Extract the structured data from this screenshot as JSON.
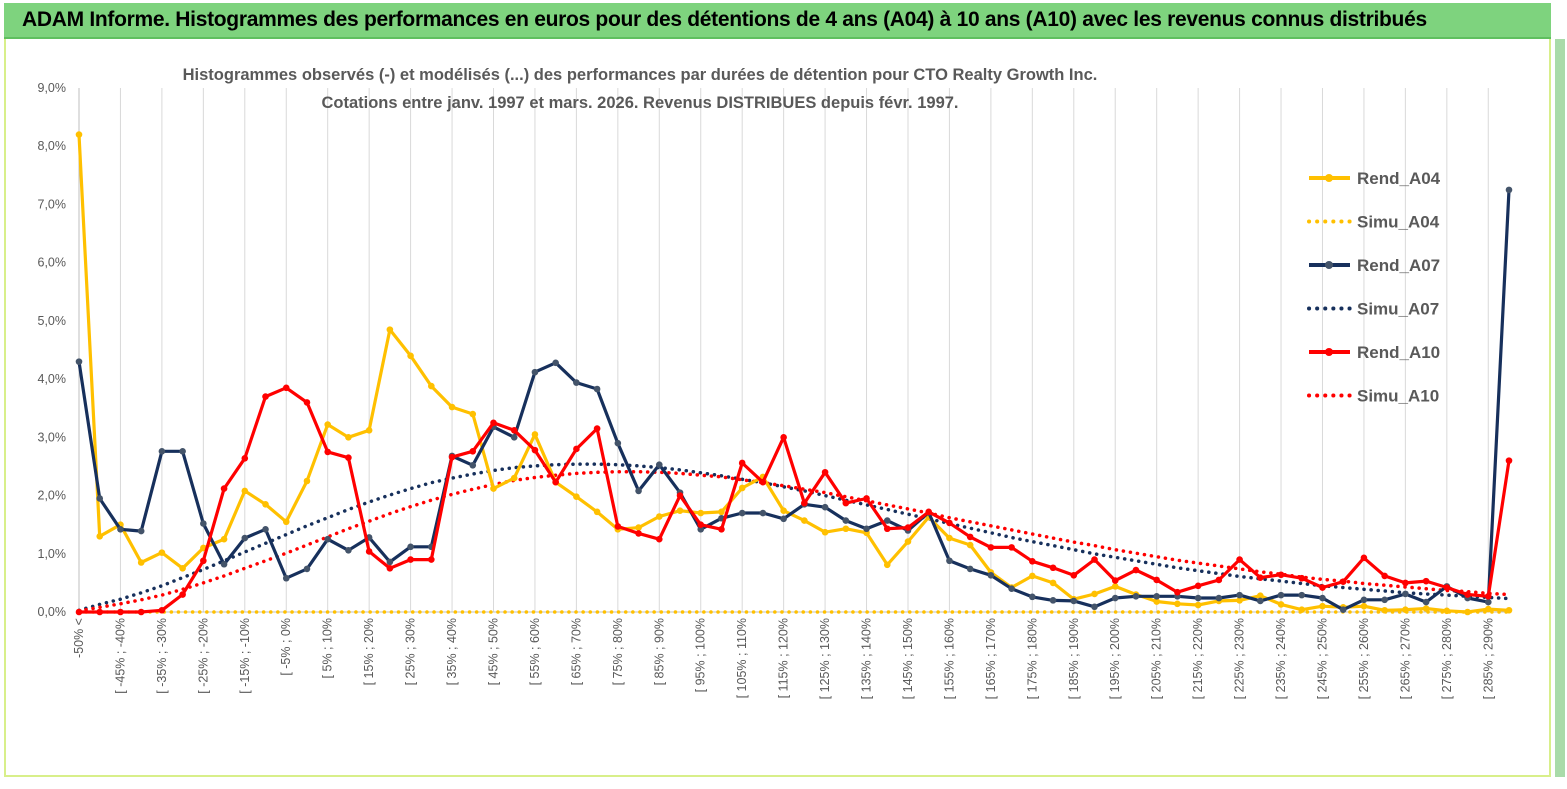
{
  "header": {
    "title": "ADAM Informe. Histogrammes des performances en euros pour des détentions de 4 ans (A04) à 10 ans (A10) avec les revenus connus distribués"
  },
  "chart_data": {
    "type": "line",
    "title_line1": "Histogrammes observés (-)  et modélisés (...) des performances par durées de détention pour CTO Realty Growth Inc.",
    "title_line2": "Cotations entre janv. 1997 et mars. 2026. Revenus DISTRIBUES depuis févr. 1997.",
    "ylim": [
      0,
      9
    ],
    "yticks": [
      "0,0%",
      "1,0%",
      "2,0%",
      "3,0%",
      "4,0%",
      "5,0%",
      "6,0%",
      "7,0%",
      "8,0%",
      "9,0%"
    ],
    "xticks": [
      "-50% <",
      "[ -45% ; -40%",
      "[ -35% ; -30%",
      "[ -25% ; -20%",
      "[ -15% ; -10%",
      "[ -5% ; 0%",
      "[ 5% ; 10%",
      "[ 15% ; 20%",
      "[ 25% ; 30%",
      "[ 35% ; 40%",
      "[ 45% ; 50%",
      "[ 55% ; 60%",
      "[ 65% ; 70%",
      "[ 75% ; 80%",
      "[ 85% ; 90%",
      "[ 95% ; 100%",
      "[ 105% ; 110%",
      "[ 115% ; 120%",
      "[ 125% ; 130%",
      "[ 135% ; 140%",
      "[ 145% ; 150%",
      "[ 155% ; 160%",
      "[ 165% ; 170%",
      "[ 175% ; 180%",
      "[ 185% ; 190%",
      "[ 195% ; 200%",
      "[ 205% ; 210%",
      "[ 215% ; 220%",
      "[ 225% ; 230%",
      "[ 235% ; 240%",
      "[ 245% ; 250%",
      "[ 255% ; 260%",
      "[ 265% ; 270%",
      "[ 275% ; 280%",
      "[ 285% ; 290%"
    ],
    "series": [
      {
        "name": "Rend_A04",
        "style": "solid",
        "color": "#ffc000",
        "values": [
          8.2,
          1.3,
          1.5,
          0.85,
          1.02,
          0.75,
          1.1,
          1.25,
          2.08,
          1.85,
          1.55,
          2.25,
          3.22,
          3.0,
          3.12,
          4.85,
          4.4,
          3.88,
          3.52,
          3.4,
          2.12,
          2.3,
          3.05,
          2.23,
          1.98,
          1.72,
          1.42,
          1.45,
          1.64,
          1.74,
          1.7,
          1.72,
          2.13,
          2.32,
          1.74,
          1.57,
          1.37,
          1.43,
          1.36,
          0.81,
          1.21,
          1.63,
          1.27,
          1.15,
          0.68,
          0.42,
          0.62,
          0.5,
          0.22,
          0.31,
          0.44,
          0.3,
          0.18,
          0.14,
          0.12,
          0.19,
          0.2,
          0.28,
          0.13,
          0.04,
          0.1,
          0.08,
          0.1,
          0.03,
          0.04,
          0.06,
          0.02,
          0.0,
          0.05,
          0.03
        ]
      },
      {
        "name": "Simu_A04",
        "style": "dotted",
        "color": "#ffc000",
        "values": [
          0,
          0,
          0,
          0,
          0,
          0,
          0,
          0,
          0,
          0,
          0,
          0,
          0,
          0,
          0,
          0,
          0,
          0,
          0,
          0,
          0,
          0,
          0,
          0,
          0,
          0,
          0,
          0,
          0,
          0,
          0,
          0,
          0,
          0,
          0,
          0,
          0,
          0,
          0,
          0,
          0,
          0,
          0,
          0,
          0,
          0,
          0,
          0,
          0,
          0,
          0,
          0,
          0,
          0,
          0,
          0,
          0,
          0,
          0,
          0,
          0,
          0,
          0,
          0,
          0,
          0,
          0,
          0,
          0,
          0
        ]
      },
      {
        "name": "Rend_A07",
        "style": "solid",
        "color": "#17305c",
        "values": [
          4.3,
          1.95,
          1.42,
          1.39,
          2.76,
          2.76,
          1.52,
          0.82,
          1.27,
          1.42,
          0.58,
          0.74,
          1.25,
          1.06,
          1.28,
          0.86,
          1.12,
          1.12,
          2.68,
          2.52,
          3.18,
          3.0,
          4.12,
          4.28,
          3.94,
          3.83,
          2.9,
          2.08,
          2.53,
          2.05,
          1.42,
          1.61,
          1.7,
          1.7,
          1.6,
          1.85,
          1.8,
          1.57,
          1.43,
          1.57,
          1.4,
          1.71,
          0.88,
          0.74,
          0.63,
          0.4,
          0.26,
          0.2,
          0.19,
          0.09,
          0.24,
          0.27,
          0.27,
          0.27,
          0.24,
          0.24,
          0.29,
          0.19,
          0.29,
          0.29,
          0.24,
          0.04,
          0.21,
          0.21,
          0.31,
          0.17,
          0.44,
          0.24,
          0.17,
          7.25
        ]
      },
      {
        "name": "Simu_A07",
        "style": "dotted",
        "color": "#17305c",
        "values": [
          0.03,
          0.13,
          0.22,
          0.33,
          0.45,
          0.59,
          0.73,
          0.88,
          1.03,
          1.18,
          1.33,
          1.48,
          1.62,
          1.76,
          1.89,
          2.01,
          2.12,
          2.22,
          2.3,
          2.37,
          2.43,
          2.48,
          2.51,
          2.53,
          2.54,
          2.54,
          2.53,
          2.51,
          2.48,
          2.44,
          2.39,
          2.34,
          2.28,
          2.22,
          2.15,
          2.08,
          2.0,
          1.92,
          1.84,
          1.76,
          1.68,
          1.6,
          1.52,
          1.44,
          1.36,
          1.28,
          1.21,
          1.14,
          1.07,
          1.0,
          0.94,
          0.88,
          0.82,
          0.76,
          0.71,
          0.66,
          0.61,
          0.57,
          0.53,
          0.49,
          0.45,
          0.42,
          0.39,
          0.36,
          0.33,
          0.31,
          0.29,
          0.27,
          0.25,
          0.23
        ]
      },
      {
        "name": "Rend_A10",
        "style": "solid",
        "color": "#ff0000",
        "values": [
          0.0,
          0.0,
          0.0,
          0.0,
          0.03,
          0.3,
          0.88,
          2.12,
          2.64,
          3.7,
          3.85,
          3.6,
          2.75,
          2.65,
          1.04,
          0.75,
          0.9,
          0.9,
          2.66,
          2.76,
          3.25,
          3.12,
          2.78,
          2.23,
          2.8,
          3.15,
          1.47,
          1.35,
          1.25,
          2.0,
          1.5,
          1.42,
          2.56,
          2.23,
          3.0,
          1.87,
          2.4,
          1.87,
          1.95,
          1.43,
          1.45,
          1.72,
          1.53,
          1.29,
          1.11,
          1.11,
          0.87,
          0.76,
          0.63,
          0.9,
          0.54,
          0.72,
          0.55,
          0.34,
          0.45,
          0.55,
          0.9,
          0.59,
          0.64,
          0.58,
          0.42,
          0.52,
          0.93,
          0.62,
          0.5,
          0.53,
          0.42,
          0.3,
          0.27,
          2.6
        ]
      },
      {
        "name": "Simu_A10",
        "style": "dotted",
        "color": "#ff0000",
        "values": [
          0.02,
          0.08,
          0.14,
          0.21,
          0.29,
          0.39,
          0.5,
          0.62,
          0.75,
          0.88,
          1.01,
          1.15,
          1.29,
          1.43,
          1.56,
          1.69,
          1.81,
          1.92,
          2.02,
          2.11,
          2.19,
          2.26,
          2.31,
          2.35,
          2.38,
          2.4,
          2.41,
          2.41,
          2.4,
          2.38,
          2.35,
          2.32,
          2.27,
          2.22,
          2.17,
          2.11,
          2.05,
          1.98,
          1.91,
          1.84,
          1.77,
          1.7,
          1.62,
          1.55,
          1.48,
          1.41,
          1.34,
          1.27,
          1.2,
          1.14,
          1.07,
          1.01,
          0.95,
          0.89,
          0.84,
          0.79,
          0.74,
          0.69,
          0.65,
          0.6,
          0.56,
          0.53,
          0.49,
          0.46,
          0.43,
          0.4,
          0.37,
          0.35,
          0.32,
          0.3
        ]
      }
    ],
    "legend": [
      "Rend_A04",
      "Simu_A04",
      "Rend_A07",
      "Simu_A07",
      "Rend_A10",
      "Simu_A10"
    ],
    "legend_position": "right",
    "grid": "vertical"
  }
}
